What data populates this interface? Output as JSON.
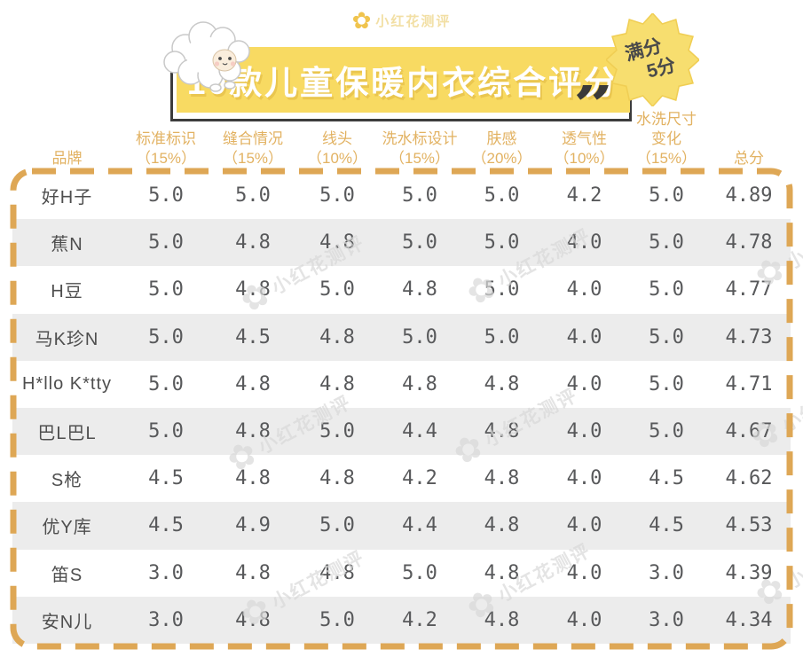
{
  "logo": {
    "text": "小红花测评"
  },
  "banner": {
    "title": "10款儿童保暖内衣综合评分"
  },
  "badge": {
    "line1": "满分",
    "line2": "5分"
  },
  "watermark": {
    "text": "小红花测评"
  },
  "colors": {
    "banner_yellow": "#F8DA62",
    "frame_dark": "#3C3C3C",
    "header_text": "#E2B262",
    "dash_border": "#DEA755",
    "row_shade": "#ECECEC",
    "score_text": "#58595B",
    "badge_yellow": "#F7DE6F",
    "watermark_gray": "#D9D9D9"
  },
  "table": {
    "columns": [
      {
        "label": "品牌",
        "sub": ""
      },
      {
        "label": "标准标识",
        "sub": "（15%）"
      },
      {
        "label": "缝合情况",
        "sub": "（15%）"
      },
      {
        "label": "线头",
        "sub": "（10%）"
      },
      {
        "label": "洗水标设计",
        "sub": "（15%）"
      },
      {
        "label": "肤感",
        "sub": "（20%）"
      },
      {
        "label": "透气性",
        "sub": "（10%）"
      },
      {
        "label": "水洗尺寸",
        "label2": "变化",
        "sub": "（15%）"
      },
      {
        "label": "总分",
        "sub": ""
      }
    ],
    "rows": [
      {
        "brand": "好H子",
        "scores": [
          "5.0",
          "5.0",
          "5.0",
          "5.0",
          "5.0",
          "4.2",
          "5.0"
        ],
        "total": "4.89"
      },
      {
        "brand": "蕉N",
        "scores": [
          "5.0",
          "4.8",
          "4.8",
          "5.0",
          "5.0",
          "4.0",
          "5.0"
        ],
        "total": "4.78"
      },
      {
        "brand": "H豆",
        "scores": [
          "5.0",
          "4.8",
          "5.0",
          "4.8",
          "5.0",
          "4.0",
          "5.0"
        ],
        "total": "4.77"
      },
      {
        "brand": "马K珍N",
        "scores": [
          "5.0",
          "4.5",
          "4.8",
          "5.0",
          "5.0",
          "4.0",
          "5.0"
        ],
        "total": "4.73"
      },
      {
        "brand": "H*llo K*tty",
        "scores": [
          "5.0",
          "4.8",
          "4.8",
          "4.8",
          "4.8",
          "4.0",
          "5.0"
        ],
        "total": "4.71"
      },
      {
        "brand": "巴L巴L",
        "scores": [
          "5.0",
          "4.8",
          "5.0",
          "4.4",
          "4.8",
          "4.0",
          "5.0"
        ],
        "total": "4.67"
      },
      {
        "brand": "S枪",
        "scores": [
          "4.5",
          "4.8",
          "4.8",
          "4.2",
          "4.8",
          "4.0",
          "4.5"
        ],
        "total": "4.62"
      },
      {
        "brand": "优Y库",
        "scores": [
          "4.5",
          "4.9",
          "5.0",
          "4.4",
          "4.8",
          "4.0",
          "4.5"
        ],
        "total": "4.53"
      },
      {
        "brand": "笛S",
        "scores": [
          "3.0",
          "4.8",
          "4.8",
          "5.0",
          "4.8",
          "4.0",
          "3.0"
        ],
        "total": "4.39"
      },
      {
        "brand": "安N儿",
        "scores": [
          "3.0",
          "4.8",
          "5.0",
          "4.2",
          "4.8",
          "4.0",
          "3.0"
        ],
        "total": "4.34"
      }
    ]
  },
  "chart_data": {
    "type": "table",
    "title": "10款儿童保暖内衣综合评分",
    "note": "满分5分",
    "columns": [
      "品牌",
      "标准标识（15%）",
      "缝合情况（15%）",
      "线头（10%）",
      "洗水标设计（15%）",
      "肤感（20%）",
      "透气性（10%）",
      "水洗尺寸变化（15%）",
      "总分"
    ],
    "rows": [
      [
        "好H子",
        5.0,
        5.0,
        5.0,
        5.0,
        5.0,
        4.2,
        5.0,
        4.89
      ],
      [
        "蕉N",
        5.0,
        4.8,
        4.8,
        5.0,
        5.0,
        4.0,
        5.0,
        4.78
      ],
      [
        "H豆",
        5.0,
        4.8,
        5.0,
        4.8,
        5.0,
        4.0,
        5.0,
        4.77
      ],
      [
        "马K珍N",
        5.0,
        4.5,
        4.8,
        5.0,
        5.0,
        4.0,
        5.0,
        4.73
      ],
      [
        "H*llo K*tty",
        5.0,
        4.8,
        4.8,
        4.8,
        4.8,
        4.0,
        5.0,
        4.71
      ],
      [
        "巴L巴L",
        5.0,
        4.8,
        5.0,
        4.4,
        4.8,
        4.0,
        5.0,
        4.67
      ],
      [
        "S枪",
        4.5,
        4.8,
        4.8,
        4.2,
        4.8,
        4.0,
        4.5,
        4.62
      ],
      [
        "优Y库",
        4.5,
        4.9,
        5.0,
        4.4,
        4.8,
        4.0,
        4.5,
        4.53
      ],
      [
        "笛S",
        3.0,
        4.8,
        4.8,
        5.0,
        4.8,
        4.0,
        3.0,
        4.39
      ],
      [
        "安N儿",
        3.0,
        4.8,
        5.0,
        4.2,
        4.8,
        4.0,
        3.0,
        4.34
      ]
    ]
  }
}
